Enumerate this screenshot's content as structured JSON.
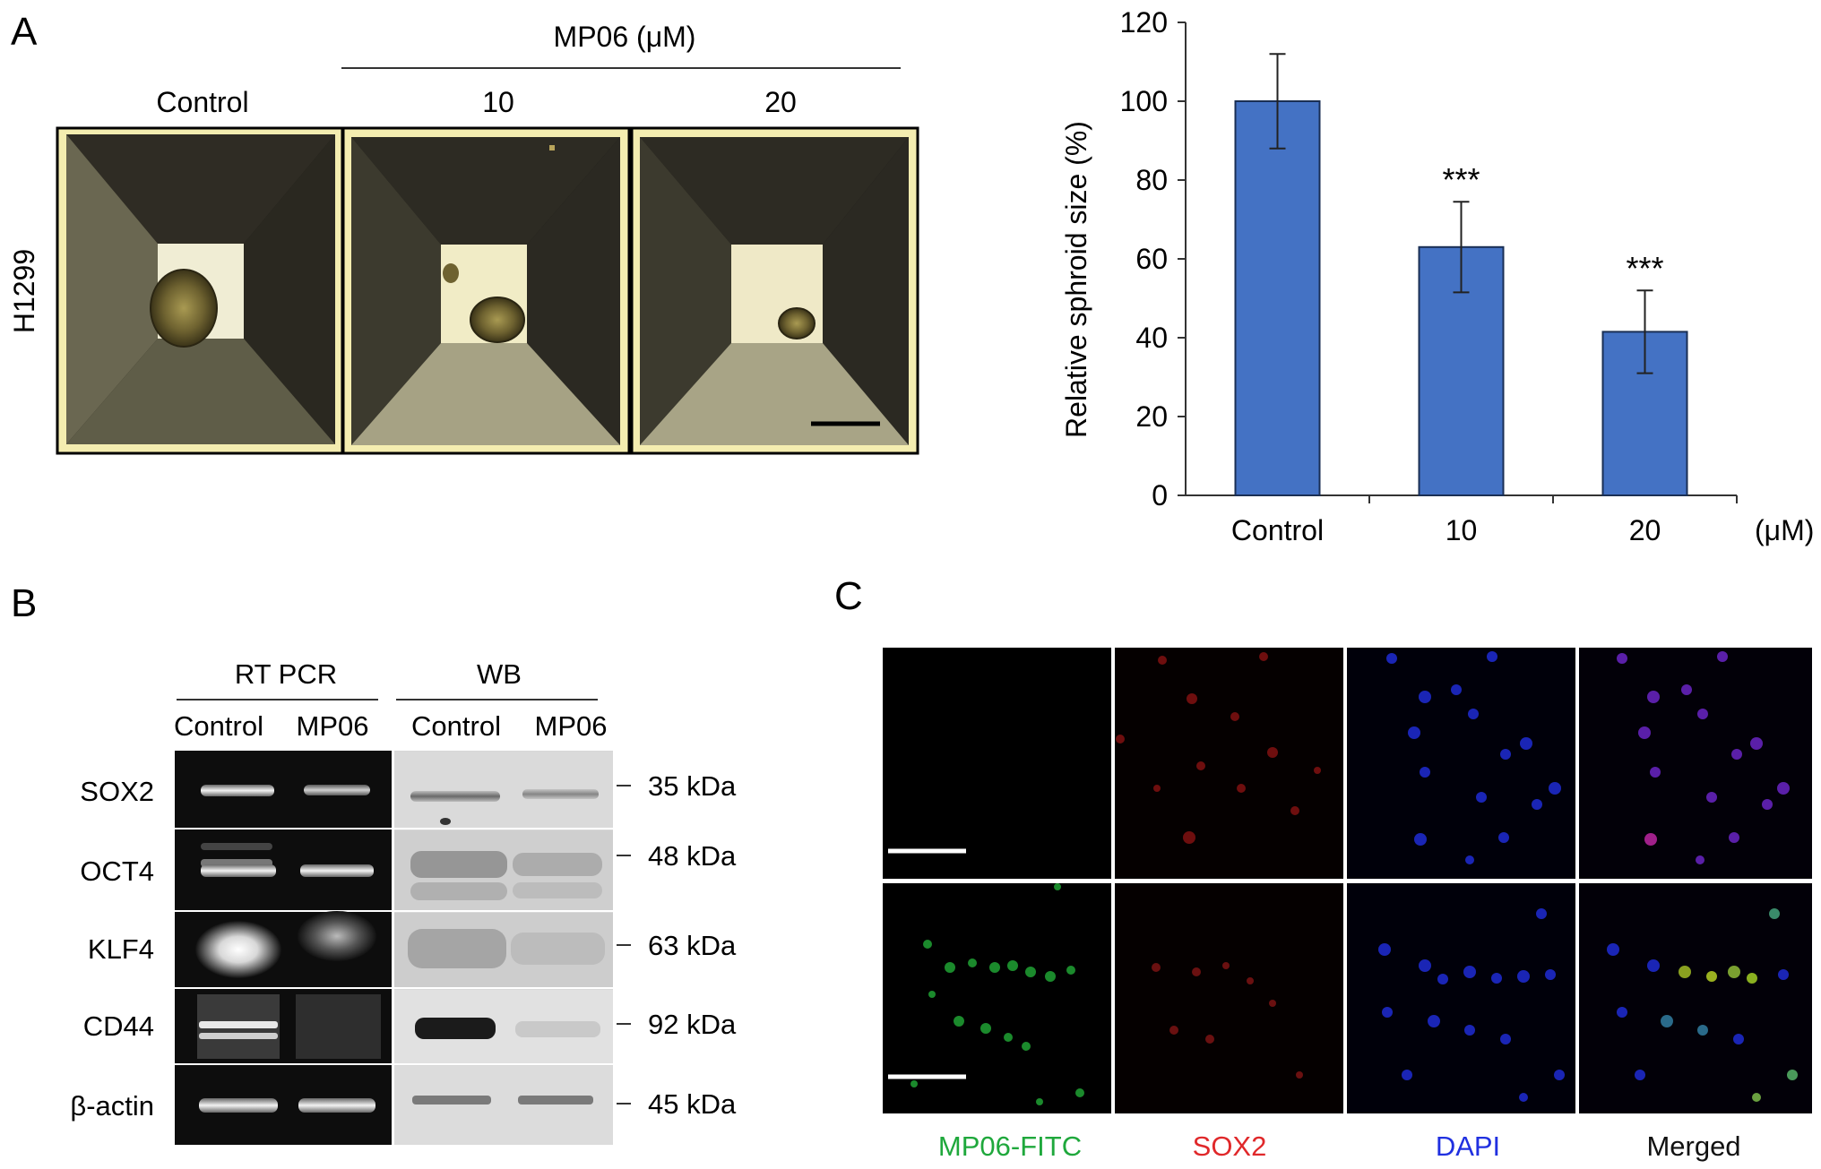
{
  "panel_a": {
    "letter": "A",
    "header": "MP06 (μM)",
    "col_labels": [
      "Control",
      "10",
      "20"
    ],
    "row_label": "H1299"
  },
  "chart_data": {
    "type": "bar",
    "categories": [
      "Control",
      "10",
      "20"
    ],
    "values": [
      100,
      63,
      41.5
    ],
    "errors": [
      12,
      11.5,
      10.5
    ],
    "significance": [
      "",
      "***",
      "***"
    ],
    "ylabel": "Relative sphroid size (%)",
    "xlabel": "",
    "x_unit": "(μM)",
    "ylim": [
      0,
      120
    ],
    "yticks": [
      0,
      20,
      40,
      60,
      80,
      100,
      120
    ],
    "bar_color": "#4472c4",
    "grid": false
  },
  "panel_b": {
    "letter": "B",
    "group1": "RT PCR",
    "group2": "WB",
    "lanes": [
      "Control",
      "MP06",
      "Control",
      "MP06"
    ],
    "rows": [
      {
        "label": "SOX2",
        "size": "35 kDa"
      },
      {
        "label": "OCT4",
        "size": "48 kDa"
      },
      {
        "label": "KLF4",
        "size": "63 kDa"
      },
      {
        "label": "CD44",
        "size": "92 kDa"
      },
      {
        "label": "β-actin",
        "size": "45 kDa"
      }
    ]
  },
  "panel_c": {
    "letter": "C",
    "channels": [
      {
        "label": "MP06-FITC",
        "color": "#1fa83c"
      },
      {
        "label": "SOX2",
        "color": "#e0282a"
      },
      {
        "label": "DAPI",
        "color": "#2030e0"
      },
      {
        "label": "Merged",
        "color": "#111111"
      }
    ]
  }
}
